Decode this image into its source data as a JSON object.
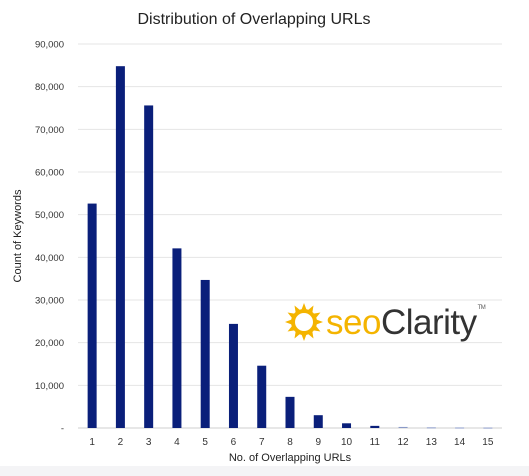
{
  "chart_data": {
    "type": "bar",
    "title": "Distribution of Overlapping URLs",
    "xlabel": "No. of Overlapping URLs",
    "ylabel": "Count of Keywords",
    "categories": [
      "1",
      "2",
      "3",
      "4",
      "5",
      "6",
      "7",
      "8",
      "9",
      "10",
      "11",
      "12",
      "13",
      "14",
      "15"
    ],
    "values": [
      52600,
      84800,
      75600,
      42100,
      34700,
      24400,
      14600,
      7300,
      3000,
      1100,
      500,
      250,
      150,
      120,
      100
    ],
    "ylim": [
      0,
      90000
    ],
    "yticks": [
      0,
      10000,
      20000,
      30000,
      40000,
      50000,
      60000,
      70000,
      80000,
      90000
    ],
    "ytick_labels": [
      "-",
      "10,000",
      "20,000",
      "30,000",
      "40,000",
      "50,000",
      "60,000",
      "70,000",
      "80,000",
      "90,000"
    ],
    "grid": true,
    "bar_color": "#0a1f7a",
    "light_bar_color": "#8a9ac8"
  },
  "watermark": {
    "brand_prefix": "seo",
    "brand_suffix": "Clarity",
    "trademark": "TM",
    "icon": "sun-gear-icon",
    "color": "#f4b400"
  }
}
